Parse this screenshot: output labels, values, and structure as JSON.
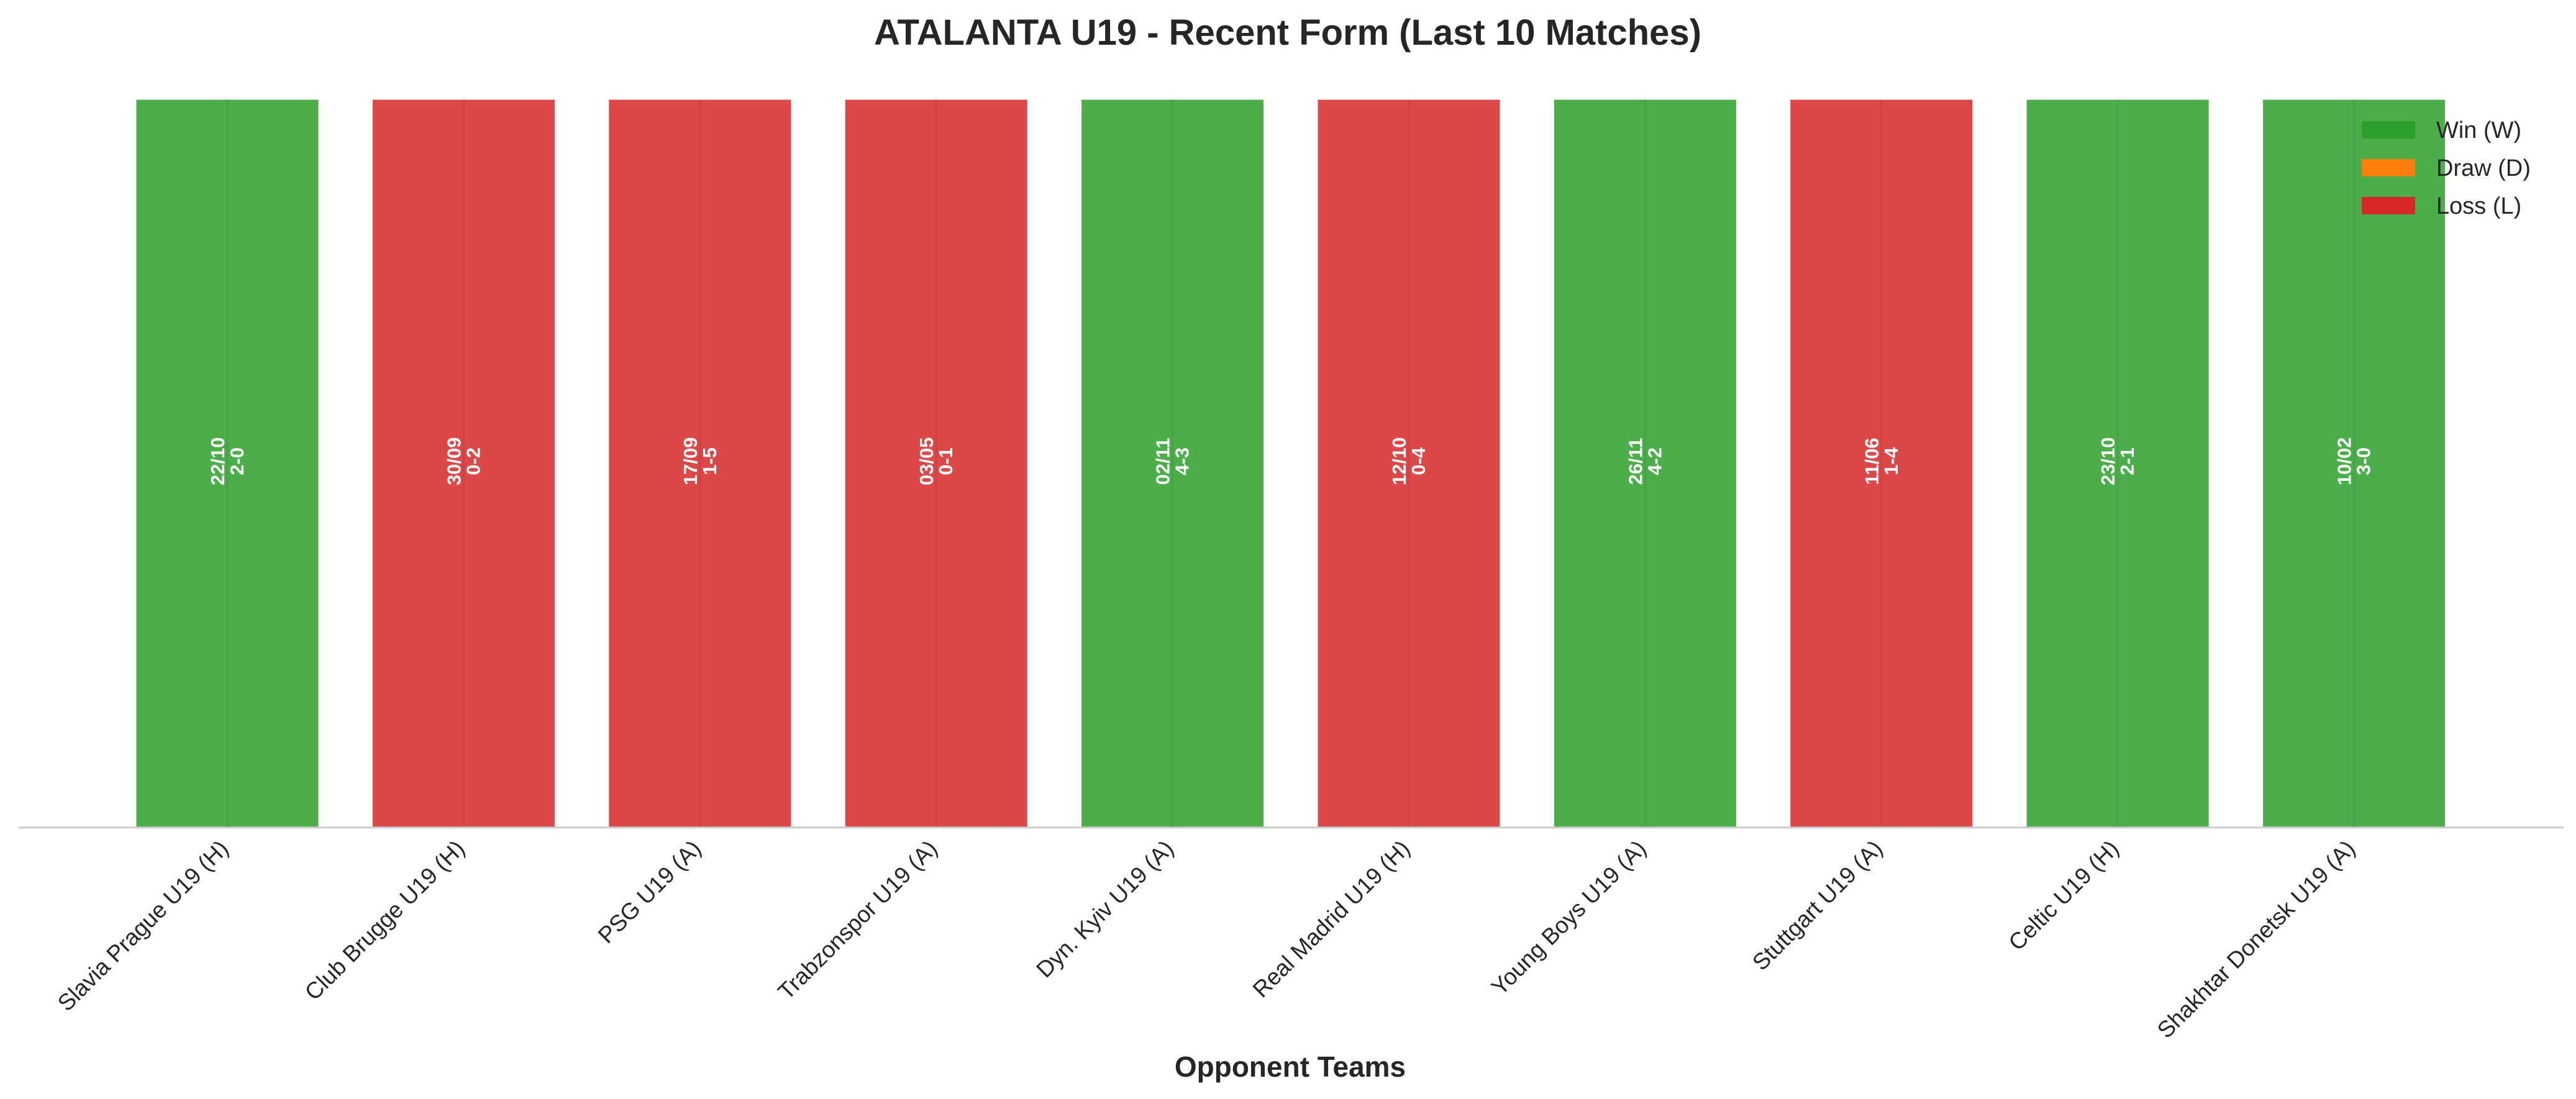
{
  "chart_data": {
    "type": "bar",
    "title": "ATALANTA U19 - Recent Form (Last 10 Matches)",
    "xlabel": "Opponent Teams",
    "ylabel": "",
    "ylim": [
      0,
      1
    ],
    "grid": false,
    "legend_position": "top-right",
    "categories": [
      "Slavia Prague U19 (H)",
      "Club Brugge U19 (H)",
      "PSG U19 (A)",
      "Trabzonspor U19 (A)",
      "Dyn. Kyiv U19 (A)",
      "Real Madrid U19 (H)",
      "Young Boys U19 (A)",
      "Stuttgart U19 (A)",
      "Celtic U19 (H)",
      "Shakhtar Donetsk U19 (A)"
    ],
    "values": [
      1,
      1,
      1,
      1,
      1,
      1,
      1,
      1,
      1,
      1
    ],
    "results": [
      "W",
      "L",
      "L",
      "L",
      "W",
      "L",
      "W",
      "L",
      "W",
      "W"
    ],
    "dates": [
      "22/10",
      "30/09",
      "17/09",
      "03/05",
      "02/11",
      "12/10",
      "26/11",
      "11/06",
      "23/10",
      "10/02"
    ],
    "scores": [
      "2-0",
      "0-2",
      "1-5",
      "0-1",
      "4-3",
      "0-4",
      "4-2",
      "1-4",
      "2-1",
      "3-0"
    ],
    "legend": [
      {
        "key": "W",
        "label": "Win (W)",
        "color": "#2ca02c"
      },
      {
        "key": "D",
        "label": "Draw (D)",
        "color": "#ff7f0e"
      },
      {
        "key": "L",
        "label": "Loss (L)",
        "color": "#d62728"
      }
    ]
  }
}
